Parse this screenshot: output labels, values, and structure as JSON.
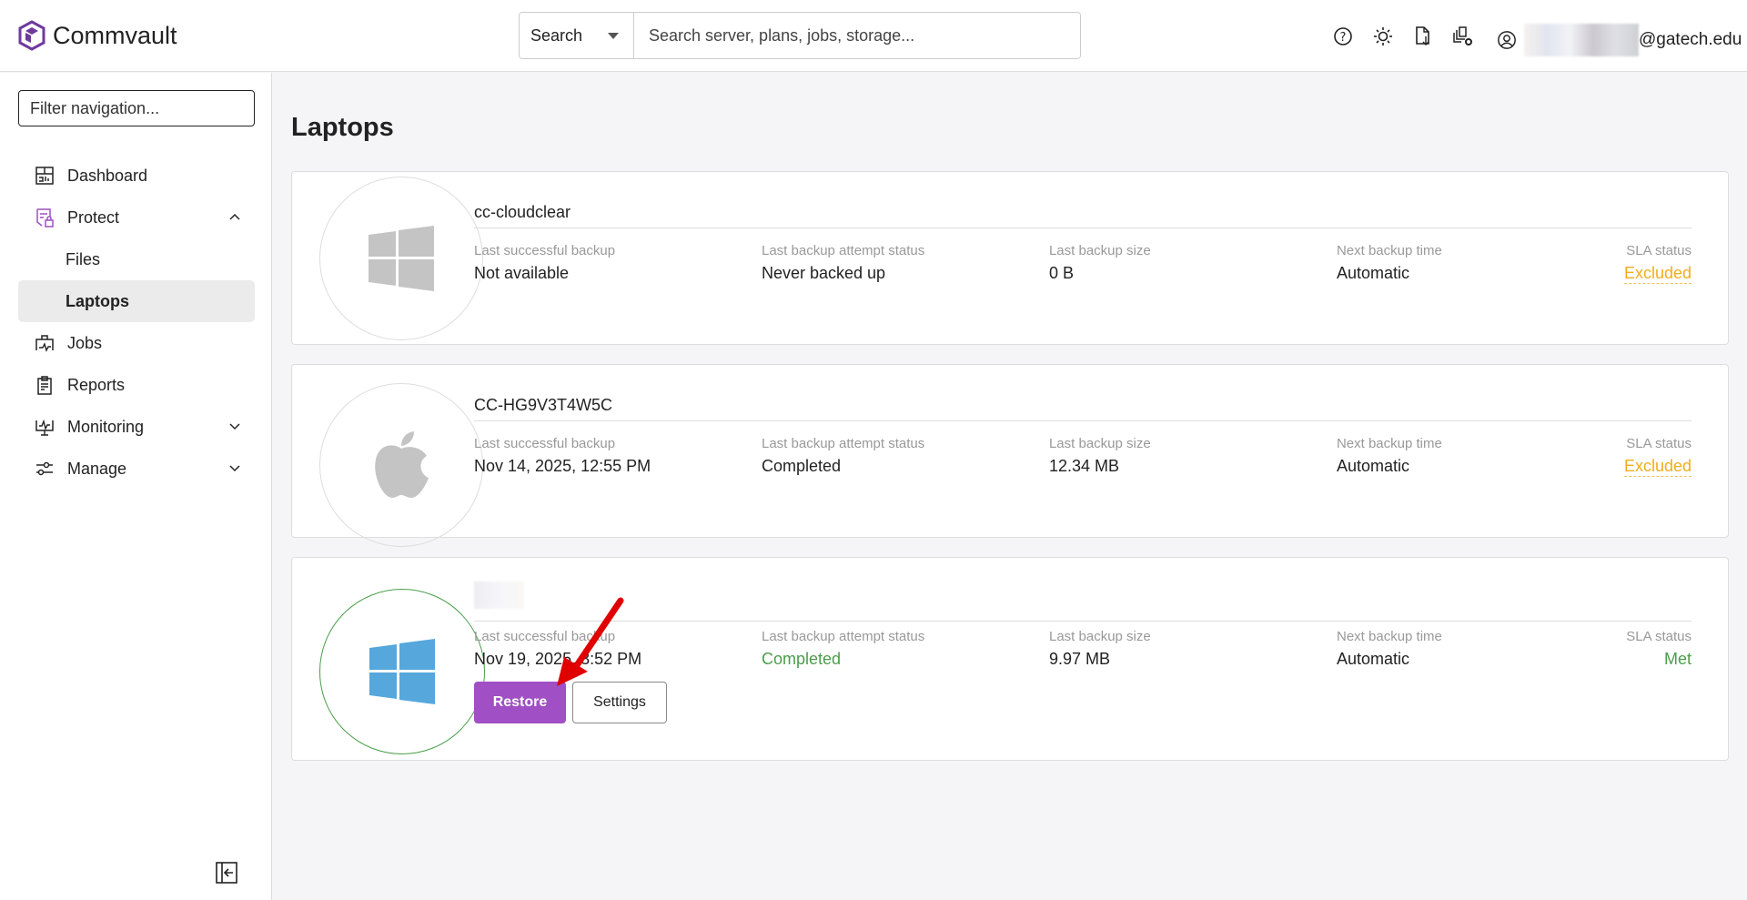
{
  "header": {
    "brand": "Commvault",
    "search_scope": "Search",
    "search_placeholder": "Search server, plans, jobs, storage...",
    "user_domain": "@gatech.edu",
    "icons": [
      "help-icon",
      "theme-icon",
      "download-report-icon",
      "settings-copies-icon",
      "user-icon"
    ],
    "brand_color": "#6e3a9e"
  },
  "sidebar": {
    "filter_placeholder": "Filter navigation...",
    "items": [
      {
        "label": "Dashboard",
        "icon": "dashboard-icon"
      },
      {
        "label": "Protect",
        "icon": "protect-icon",
        "expanded": true
      },
      {
        "label": "Files"
      },
      {
        "label": "Laptops",
        "active": true
      },
      {
        "label": "Jobs",
        "icon": "jobs-icon"
      },
      {
        "label": "Reports",
        "icon": "reports-icon"
      },
      {
        "label": "Monitoring",
        "icon": "monitoring-icon"
      },
      {
        "label": "Manage",
        "icon": "manage-icon"
      }
    ]
  },
  "page": {
    "title": "Laptops"
  },
  "labels": {
    "last_success": "Last successful backup",
    "attempt_status": "Last backup attempt status",
    "size": "Last backup size",
    "next": "Next backup time",
    "sla": "SLA status"
  },
  "laptops": [
    {
      "name": "cc-cloudclear",
      "os": "windows",
      "last_success": "Not available",
      "attempt_status": "Never backed up",
      "size": "0 B",
      "next": "Automatic",
      "sla": "Excluded"
    },
    {
      "name": "CC-HG9V3T4W5C",
      "os": "apple",
      "last_success": "Nov 14, 2025, 12:55 PM",
      "attempt_status": "Completed",
      "size": "12.34 MB",
      "next": "Automatic",
      "sla": "Excluded"
    },
    {
      "os": "windows",
      "last_success": "Nov 19, 2025, 3:52 PM",
      "attempt_status": "Completed",
      "size": "9.97 MB",
      "next": "Automatic",
      "sla": "Met",
      "restore_label": "Restore",
      "settings_label": "Settings"
    }
  ],
  "colors": {
    "excluded": "#f0ad1e",
    "ok": "#4a9e4a",
    "primary": "#a04fc4",
    "annotation_arrow": "#e00000"
  }
}
